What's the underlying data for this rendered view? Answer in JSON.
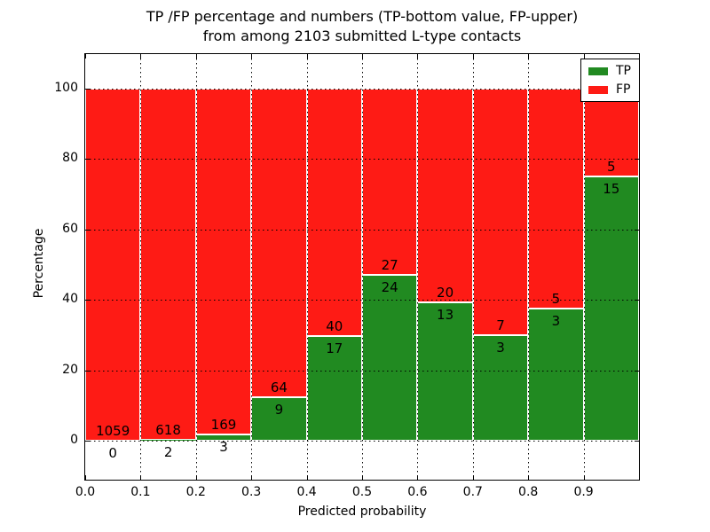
{
  "figure": {
    "title_line1": "TP /FP percentage and numbers (TP-bottom value, FP-upper)",
    "title_line2": "from among 2103 submitted L-type contacts"
  },
  "chart_data": {
    "type": "bar",
    "stacked": true,
    "title": "TP /FP percentage and numbers (TP-bottom value, FP-upper)\nfrom among 2103 submitted L-type contacts",
    "xlabel": "Predicted probability",
    "ylabel": "Percentage",
    "total_contacts": 2103,
    "x_tick_labels": [
      "0.0",
      "0.1",
      "0.2",
      "0.3",
      "0.4",
      "0.5",
      "0.6",
      "0.7",
      "0.8",
      "0.9"
    ],
    "y_ticks": [
      0,
      20,
      40,
      60,
      80,
      100
    ],
    "xlim": [
      0.0,
      1.0
    ],
    "ylim": [
      -11,
      110
    ],
    "grid": "dotted-black-over-bars",
    "bar_unit": "percentage of bin (TP bottom, FP stacked to 100%)",
    "legend": {
      "position": "upper right",
      "entries": [
        {
          "label": "TP",
          "color": "#218a21"
        },
        {
          "label": "FP",
          "color": "#fe1b15"
        }
      ]
    },
    "colors": {
      "tp": "#218a21",
      "fp": "#fe1b15",
      "bar_edge": "#ffffff"
    },
    "bins": [
      {
        "x_start": 0.0,
        "x_end": 0.1,
        "tp": 0,
        "fp": 1059,
        "tp_pct": 0.0
      },
      {
        "x_start": 0.1,
        "x_end": 0.2,
        "tp": 2,
        "fp": 618,
        "tp_pct": 0.32
      },
      {
        "x_start": 0.2,
        "x_end": 0.3,
        "tp": 3,
        "fp": 169,
        "tp_pct": 1.74
      },
      {
        "x_start": 0.3,
        "x_end": 0.4,
        "tp": 9,
        "fp": 64,
        "tp_pct": 12.33
      },
      {
        "x_start": 0.4,
        "x_end": 0.5,
        "tp": 17,
        "fp": 40,
        "tp_pct": 29.82
      },
      {
        "x_start": 0.5,
        "x_end": 0.6,
        "tp": 24,
        "fp": 27,
        "tp_pct": 47.06
      },
      {
        "x_start": 0.6,
        "x_end": 0.7,
        "tp": 13,
        "fp": 20,
        "tp_pct": 39.39
      },
      {
        "x_start": 0.7,
        "x_end": 0.8,
        "tp": 3,
        "fp": 7,
        "tp_pct": 30.0
      },
      {
        "x_start": 0.8,
        "x_end": 0.9,
        "tp": 3,
        "fp": 5,
        "tp_pct": 37.5
      },
      {
        "x_start": 0.9,
        "x_end": 1.0,
        "tp": 15,
        "fp": 5,
        "tp_pct": 75.0
      }
    ]
  }
}
